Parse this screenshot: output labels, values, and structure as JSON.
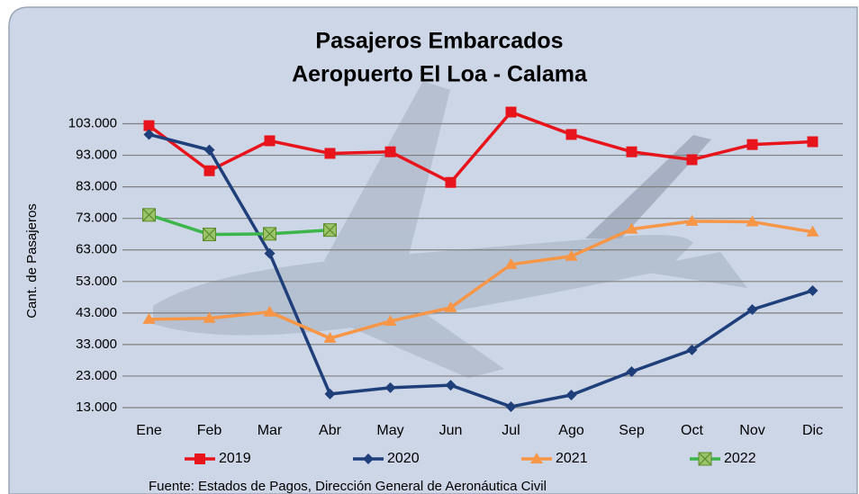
{
  "chart_data": {
    "type": "line",
    "title": "Pasajeros Embarcados",
    "subtitle": "Aeropuerto El Loa - Calama",
    "y_label": "Cant. de Pasajeros",
    "source": "Fuente: Estados de Pagos, Dirección General de Aeronáutica Civil",
    "categories": [
      "Ene",
      "Feb",
      "Mar",
      "Abr",
      "May",
      "Jun",
      "Jul",
      "Ago",
      "Sep",
      "Oct",
      "Nov",
      "Dic"
    ],
    "series": [
      {
        "name": "2019",
        "color": "#e8141c",
        "marker": "square",
        "values": [
          102400,
          88100,
          97600,
          93600,
          94100,
          84400,
          106700,
          99600,
          94100,
          91600,
          96400,
          97300
        ]
      },
      {
        "name": "2020",
        "color": "#1f3f7a",
        "marker": "diamond",
        "values": [
          99600,
          94700,
          61900,
          17300,
          19300,
          20100,
          13300,
          17000,
          24400,
          31300,
          44100,
          50100
        ]
      },
      {
        "name": "2021",
        "color": "#f79646",
        "marker": "triangle",
        "values": [
          41000,
          41300,
          43300,
          35000,
          40400,
          44700,
          58400,
          61000,
          69600,
          72100,
          71900,
          68700
        ]
      },
      {
        "name": "2022",
        "color": "#3cb54a",
        "marker": "xsquare",
        "values": [
          74100,
          67900,
          68100,
          69300,
          null,
          null,
          null,
          null,
          null,
          null,
          null,
          null
        ]
      }
    ],
    "ylim": [
      13000,
      108000
    ],
    "yticks": [
      {
        "value": 13000,
        "label": "13.000"
      },
      {
        "value": 23000,
        "label": "23.000"
      },
      {
        "value": 33000,
        "label": "33.000"
      },
      {
        "value": 43000,
        "label": "43.000"
      },
      {
        "value": 53000,
        "label": "53.000"
      },
      {
        "value": 63000,
        "label": "63.000"
      },
      {
        "value": 73000,
        "label": "73.000"
      },
      {
        "value": 83000,
        "label": "83.000"
      },
      {
        "value": 93000,
        "label": "93.000"
      },
      {
        "value": 103000,
        "label": "103.000"
      }
    ],
    "grid": true,
    "legend": "bottom"
  }
}
